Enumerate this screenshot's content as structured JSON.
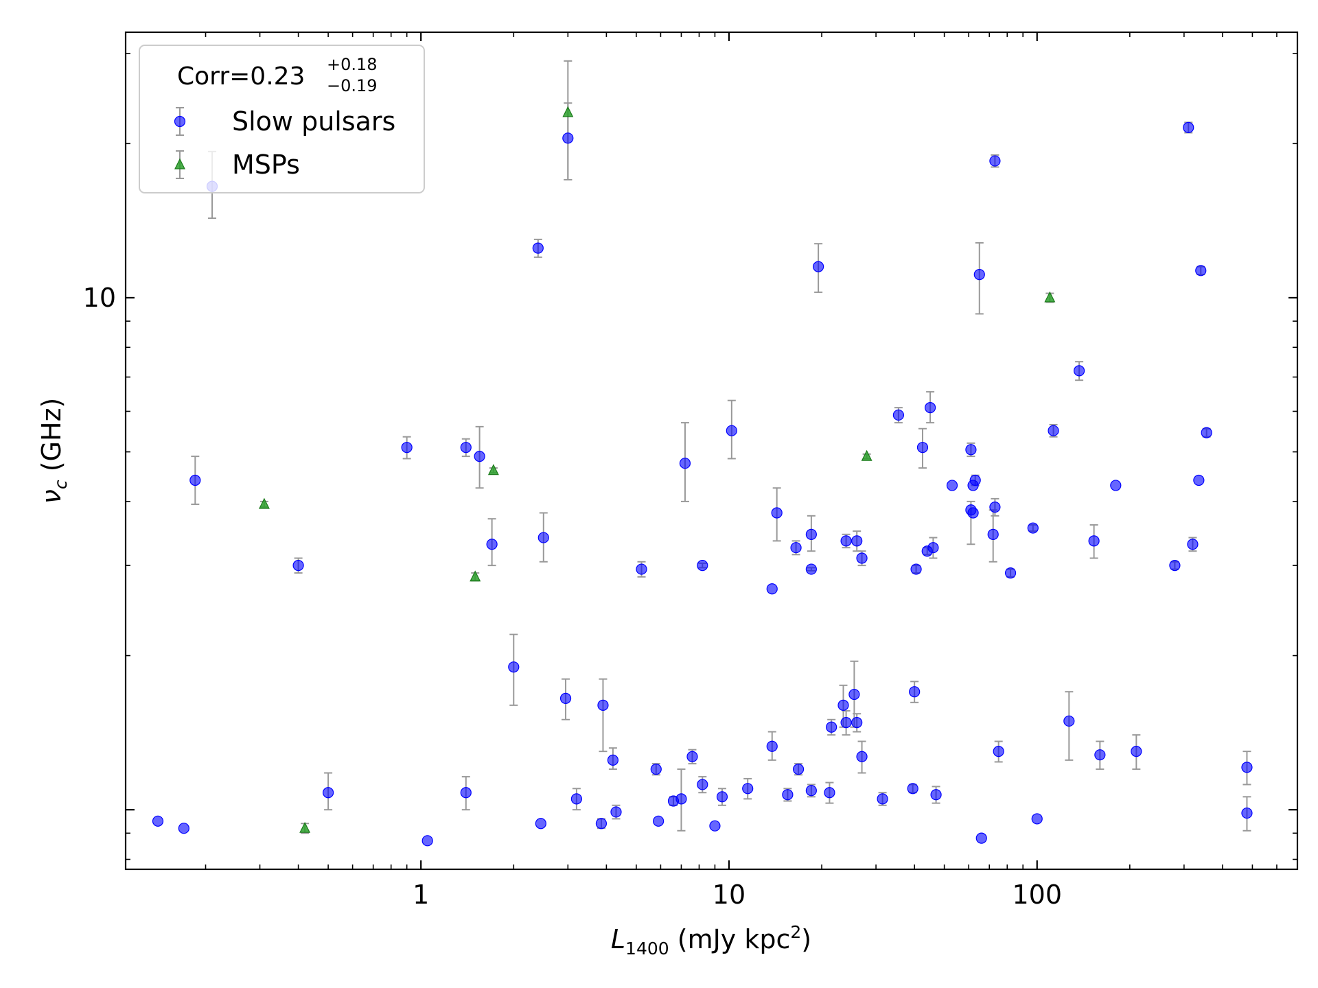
{
  "chart_data": {
    "type": "scatter",
    "title": "",
    "xlabel": {
      "main": "L",
      "sub": "1400",
      "rest": " (mJy kpc",
      "sup": "2",
      "end": ")"
    },
    "ylabel": {
      "main": "ν",
      "sub": "c",
      "rest": " (GHz)"
    },
    "xscale": "log",
    "yscale": "log",
    "xlim": [
      0.11,
      700
    ],
    "ylim": [
      0.765,
      33
    ],
    "x_ticks": [
      {
        "value": 1,
        "label": "1"
      },
      {
        "value": 10,
        "label": "10"
      },
      {
        "value": 100,
        "label": "100"
      }
    ],
    "y_ticks": [
      {
        "value": 10,
        "label": "10"
      }
    ],
    "grid": false,
    "legend": {
      "placement": "upper-left",
      "title": {
        "main": "Corr=0.23",
        "sup": "+0.18",
        "sub": "−0.19"
      }
    },
    "series": [
      {
        "name": "Slow pulsars",
        "marker": "circle",
        "color": "#0000ff",
        "points": [
          {
            "x": 0.14,
            "y": 0.95
          },
          {
            "x": 0.17,
            "y": 0.92
          },
          {
            "x": 0.185,
            "y": 4.4,
            "yerr": [
              3.95,
              4.9
            ]
          },
          {
            "x": 0.21,
            "y": 16.5,
            "yerr": [
              14.3,
              19.3
            ]
          },
          {
            "x": 0.4,
            "y": 3.0,
            "yerr": [
              2.9,
              3.1
            ]
          },
          {
            "x": 0.5,
            "y": 1.08,
            "yerr": [
              1.0,
              1.18
            ]
          },
          {
            "x": 0.9,
            "y": 5.1,
            "yerr": [
              4.85,
              5.35
            ]
          },
          {
            "x": 1.05,
            "y": 0.87
          },
          {
            "x": 1.4,
            "y": 5.1,
            "yerr": [
              4.9,
              5.3
            ]
          },
          {
            "x": 1.4,
            "y": 1.08,
            "yerr": [
              1.0,
              1.16
            ]
          },
          {
            "x": 1.55,
            "y": 4.9,
            "yerr": [
              4.25,
              5.6
            ]
          },
          {
            "x": 1.7,
            "y": 3.3,
            "yerr": [
              3.0,
              3.7
            ]
          },
          {
            "x": 2.0,
            "y": 1.9,
            "yerr": [
              1.6,
              2.2
            ]
          },
          {
            "x": 2.4,
            "y": 12.5,
            "yerr": [
              12.0,
              13.0
            ]
          },
          {
            "x": 2.5,
            "y": 3.4,
            "yerr": [
              3.05,
              3.8
            ]
          },
          {
            "x": 2.45,
            "y": 0.94
          },
          {
            "x": 3.0,
            "y": 20.5,
            "yerr": [
              17.0,
              24.0
            ]
          },
          {
            "x": 2.95,
            "y": 1.65,
            "yerr": [
              1.5,
              1.8
            ]
          },
          {
            "x": 3.2,
            "y": 1.05,
            "yerr": [
              1.0,
              1.1
            ]
          },
          {
            "x": 3.9,
            "y": 1.6,
            "yerr": [
              1.3,
              1.8
            ]
          },
          {
            "x": 3.85,
            "y": 0.94,
            "yerr": [
              0.92,
              0.96
            ]
          },
          {
            "x": 4.2,
            "y": 1.25,
            "yerr": [
              1.2,
              1.32
            ]
          },
          {
            "x": 4.3,
            "y": 0.99,
            "yerr": [
              0.96,
              1.02
            ]
          },
          {
            "x": 5.2,
            "y": 2.95,
            "yerr": [
              2.85,
              3.05
            ]
          },
          {
            "x": 5.8,
            "y": 1.2,
            "yerr": [
              1.17,
              1.23
            ]
          },
          {
            "x": 5.9,
            "y": 0.95
          },
          {
            "x": 6.6,
            "y": 1.04,
            "yerr": [
              1.02,
              1.06
            ]
          },
          {
            "x": 7.0,
            "y": 1.05,
            "yerr": [
              0.91,
              1.2
            ]
          },
          {
            "x": 7.2,
            "y": 4.75,
            "yerr": [
              4.0,
              5.7
            ]
          },
          {
            "x": 7.6,
            "y": 1.27,
            "yerr": [
              1.23,
              1.31
            ]
          },
          {
            "x": 8.2,
            "y": 3.0,
            "yerr": [
              2.97,
              3.03
            ]
          },
          {
            "x": 8.2,
            "y": 1.12,
            "yerr": [
              1.08,
              1.16
            ]
          },
          {
            "x": 9.0,
            "y": 0.93
          },
          {
            "x": 9.5,
            "y": 1.06,
            "yerr": [
              1.02,
              1.1
            ]
          },
          {
            "x": 10.2,
            "y": 5.5,
            "yerr": [
              4.85,
              6.3
            ]
          },
          {
            "x": 11.5,
            "y": 1.1,
            "yerr": [
              1.05,
              1.15
            ]
          },
          {
            "x": 13.8,
            "y": 1.33,
            "yerr": [
              1.25,
              1.42
            ]
          },
          {
            "x": 13.8,
            "y": 2.7
          },
          {
            "x": 14.3,
            "y": 3.8,
            "yerr": [
              3.35,
              4.25
            ]
          },
          {
            "x": 15.5,
            "y": 1.07,
            "yerr": [
              1.04,
              1.1
            ]
          },
          {
            "x": 16.5,
            "y": 3.25,
            "yerr": [
              3.15,
              3.35
            ]
          },
          {
            "x": 16.8,
            "y": 1.2,
            "yerr": [
              1.17,
              1.23
            ]
          },
          {
            "x": 18.5,
            "y": 3.45,
            "yerr": [
              3.2,
              3.75
            ]
          },
          {
            "x": 18.5,
            "y": 2.95,
            "yerr": [
              2.93,
              2.97
            ]
          },
          {
            "x": 18.5,
            "y": 1.09,
            "yerr": [
              1.06,
              1.12
            ]
          },
          {
            "x": 19.5,
            "y": 11.5,
            "yerr": [
              10.25,
              12.75
            ]
          },
          {
            "x": 21.5,
            "y": 1.45,
            "yerr": [
              1.4,
              1.5
            ]
          },
          {
            "x": 21.2,
            "y": 1.08,
            "yerr": [
              1.03,
              1.13
            ]
          },
          {
            "x": 24.0,
            "y": 3.35,
            "yerr": [
              3.25,
              3.45
            ]
          },
          {
            "x": 23.5,
            "y": 1.6,
            "yerr": [
              1.45,
              1.75
            ]
          },
          {
            "x": 24.0,
            "y": 1.48,
            "yerr": [
              1.4,
              1.56
            ]
          },
          {
            "x": 26.0,
            "y": 3.35,
            "yerr": [
              3.2,
              3.5
            ]
          },
          {
            "x": 25.5,
            "y": 1.68,
            "yerr": [
              1.45,
              1.95
            ]
          },
          {
            "x": 26.0,
            "y": 1.48,
            "yerr": [
              1.42,
              1.54
            ]
          },
          {
            "x": 27.0,
            "y": 3.1,
            "yerr": [
              3.0,
              3.2
            ]
          },
          {
            "x": 27.0,
            "y": 1.27,
            "yerr": [
              1.18,
              1.36
            ]
          },
          {
            "x": 31.5,
            "y": 1.05,
            "yerr": [
              1.02,
              1.08
            ]
          },
          {
            "x": 35.5,
            "y": 5.9,
            "yerr": [
              5.7,
              6.1
            ]
          },
          {
            "x": 39.5,
            "y": 1.1,
            "yerr": [
              1.08,
              1.12
            ]
          },
          {
            "x": 40.0,
            "y": 1.7,
            "yerr": [
              1.62,
              1.78
            ]
          },
          {
            "x": 40.5,
            "y": 2.95,
            "yerr": [
              2.9,
              3.0
            ]
          },
          {
            "x": 42.5,
            "y": 5.1,
            "yerr": [
              4.65,
              5.55
            ]
          },
          {
            "x": 44.0,
            "y": 3.2,
            "yerr": [
              3.15,
              3.25
            ]
          },
          {
            "x": 45.0,
            "y": 6.1,
            "yerr": [
              5.7,
              6.55
            ]
          },
          {
            "x": 46.0,
            "y": 3.25,
            "yerr": [
              3.1,
              3.4
            ]
          },
          {
            "x": 47.0,
            "y": 1.07,
            "yerr": [
              1.03,
              1.11
            ]
          },
          {
            "x": 53.0,
            "y": 4.3
          },
          {
            "x": 61.0,
            "y": 5.05,
            "yerr": [
              4.9,
              5.2
            ]
          },
          {
            "x": 62.0,
            "y": 4.3
          },
          {
            "x": 63.0,
            "y": 4.4,
            "yerr": [
              4.3,
              4.5
            ]
          },
          {
            "x": 61.0,
            "y": 3.85,
            "yerr": [
              3.3,
              4.0
            ]
          },
          {
            "x": 62.0,
            "y": 3.8
          },
          {
            "x": 65.0,
            "y": 11.1,
            "yerr": [
              9.3,
              12.8
            ]
          },
          {
            "x": 66.0,
            "y": 0.88
          },
          {
            "x": 72.0,
            "y": 3.45,
            "yerr": [
              3.05,
              3.85
            ]
          },
          {
            "x": 73.0,
            "y": 3.9,
            "yerr": [
              3.75,
              4.05
            ]
          },
          {
            "x": 73.0,
            "y": 18.5,
            "yerr": [
              18.0,
              19.0
            ]
          },
          {
            "x": 75.0,
            "y": 1.3,
            "yerr": [
              1.24,
              1.36
            ]
          },
          {
            "x": 82.0,
            "y": 2.9,
            "yerr": [
              2.85,
              2.95
            ]
          },
          {
            "x": 97.0,
            "y": 3.55,
            "yerr": [
              3.5,
              3.6
            ]
          },
          {
            "x": 100.0,
            "y": 0.96
          },
          {
            "x": 113.0,
            "y": 5.5,
            "yerr": [
              5.35,
              5.65
            ]
          },
          {
            "x": 127.0,
            "y": 1.49,
            "yerr": [
              1.25,
              1.7
            ]
          },
          {
            "x": 137.0,
            "y": 7.2,
            "yerr": [
              6.9,
              7.5
            ]
          },
          {
            "x": 153.0,
            "y": 3.35,
            "yerr": [
              3.1,
              3.6
            ]
          },
          {
            "x": 160.0,
            "y": 1.28,
            "yerr": [
              1.2,
              1.36
            ]
          },
          {
            "x": 180.0,
            "y": 4.3
          },
          {
            "x": 210.0,
            "y": 1.3,
            "yerr": [
              1.2,
              1.4
            ]
          },
          {
            "x": 280.0,
            "y": 3.0,
            "yerr": [
              2.95,
              3.05
            ]
          },
          {
            "x": 310.0,
            "y": 21.5,
            "yerr": [
              21.0,
              22.0
            ]
          },
          {
            "x": 320.0,
            "y": 3.3,
            "yerr": [
              3.2,
              3.4
            ]
          },
          {
            "x": 335.0,
            "y": 4.4
          },
          {
            "x": 340.0,
            "y": 11.3,
            "yerr": [
              11.1,
              11.5
            ]
          },
          {
            "x": 355.0,
            "y": 5.45,
            "yerr": [
              5.35,
              5.55
            ]
          },
          {
            "x": 480.0,
            "y": 1.21,
            "yerr": [
              1.12,
              1.3
            ]
          },
          {
            "x": 480.0,
            "y": 0.985,
            "yerr": [
              0.91,
              1.06
            ]
          }
        ]
      },
      {
        "name": "MSPs",
        "marker": "triangle",
        "color": "#2ca02c",
        "points": [
          {
            "x": 0.31,
            "y": 3.95,
            "yerr": [
              3.9,
              4.0
            ]
          },
          {
            "x": 0.42,
            "y": 0.92,
            "yerr": [
              0.9,
              0.94
            ]
          },
          {
            "x": 1.5,
            "y": 2.85,
            "yerr": [
              2.8,
              2.9
            ]
          },
          {
            "x": 1.72,
            "y": 4.6,
            "yerr": [
              4.55,
              4.65
            ]
          },
          {
            "x": 3.0,
            "y": 23.0,
            "yerr": [
              17.0,
              29.0
            ]
          },
          {
            "x": 28.0,
            "y": 4.9,
            "yerr": [
              4.85,
              4.95
            ]
          },
          {
            "x": 110.0,
            "y": 10.0,
            "yerr": [
              9.8,
              10.2
            ]
          }
        ]
      }
    ]
  }
}
